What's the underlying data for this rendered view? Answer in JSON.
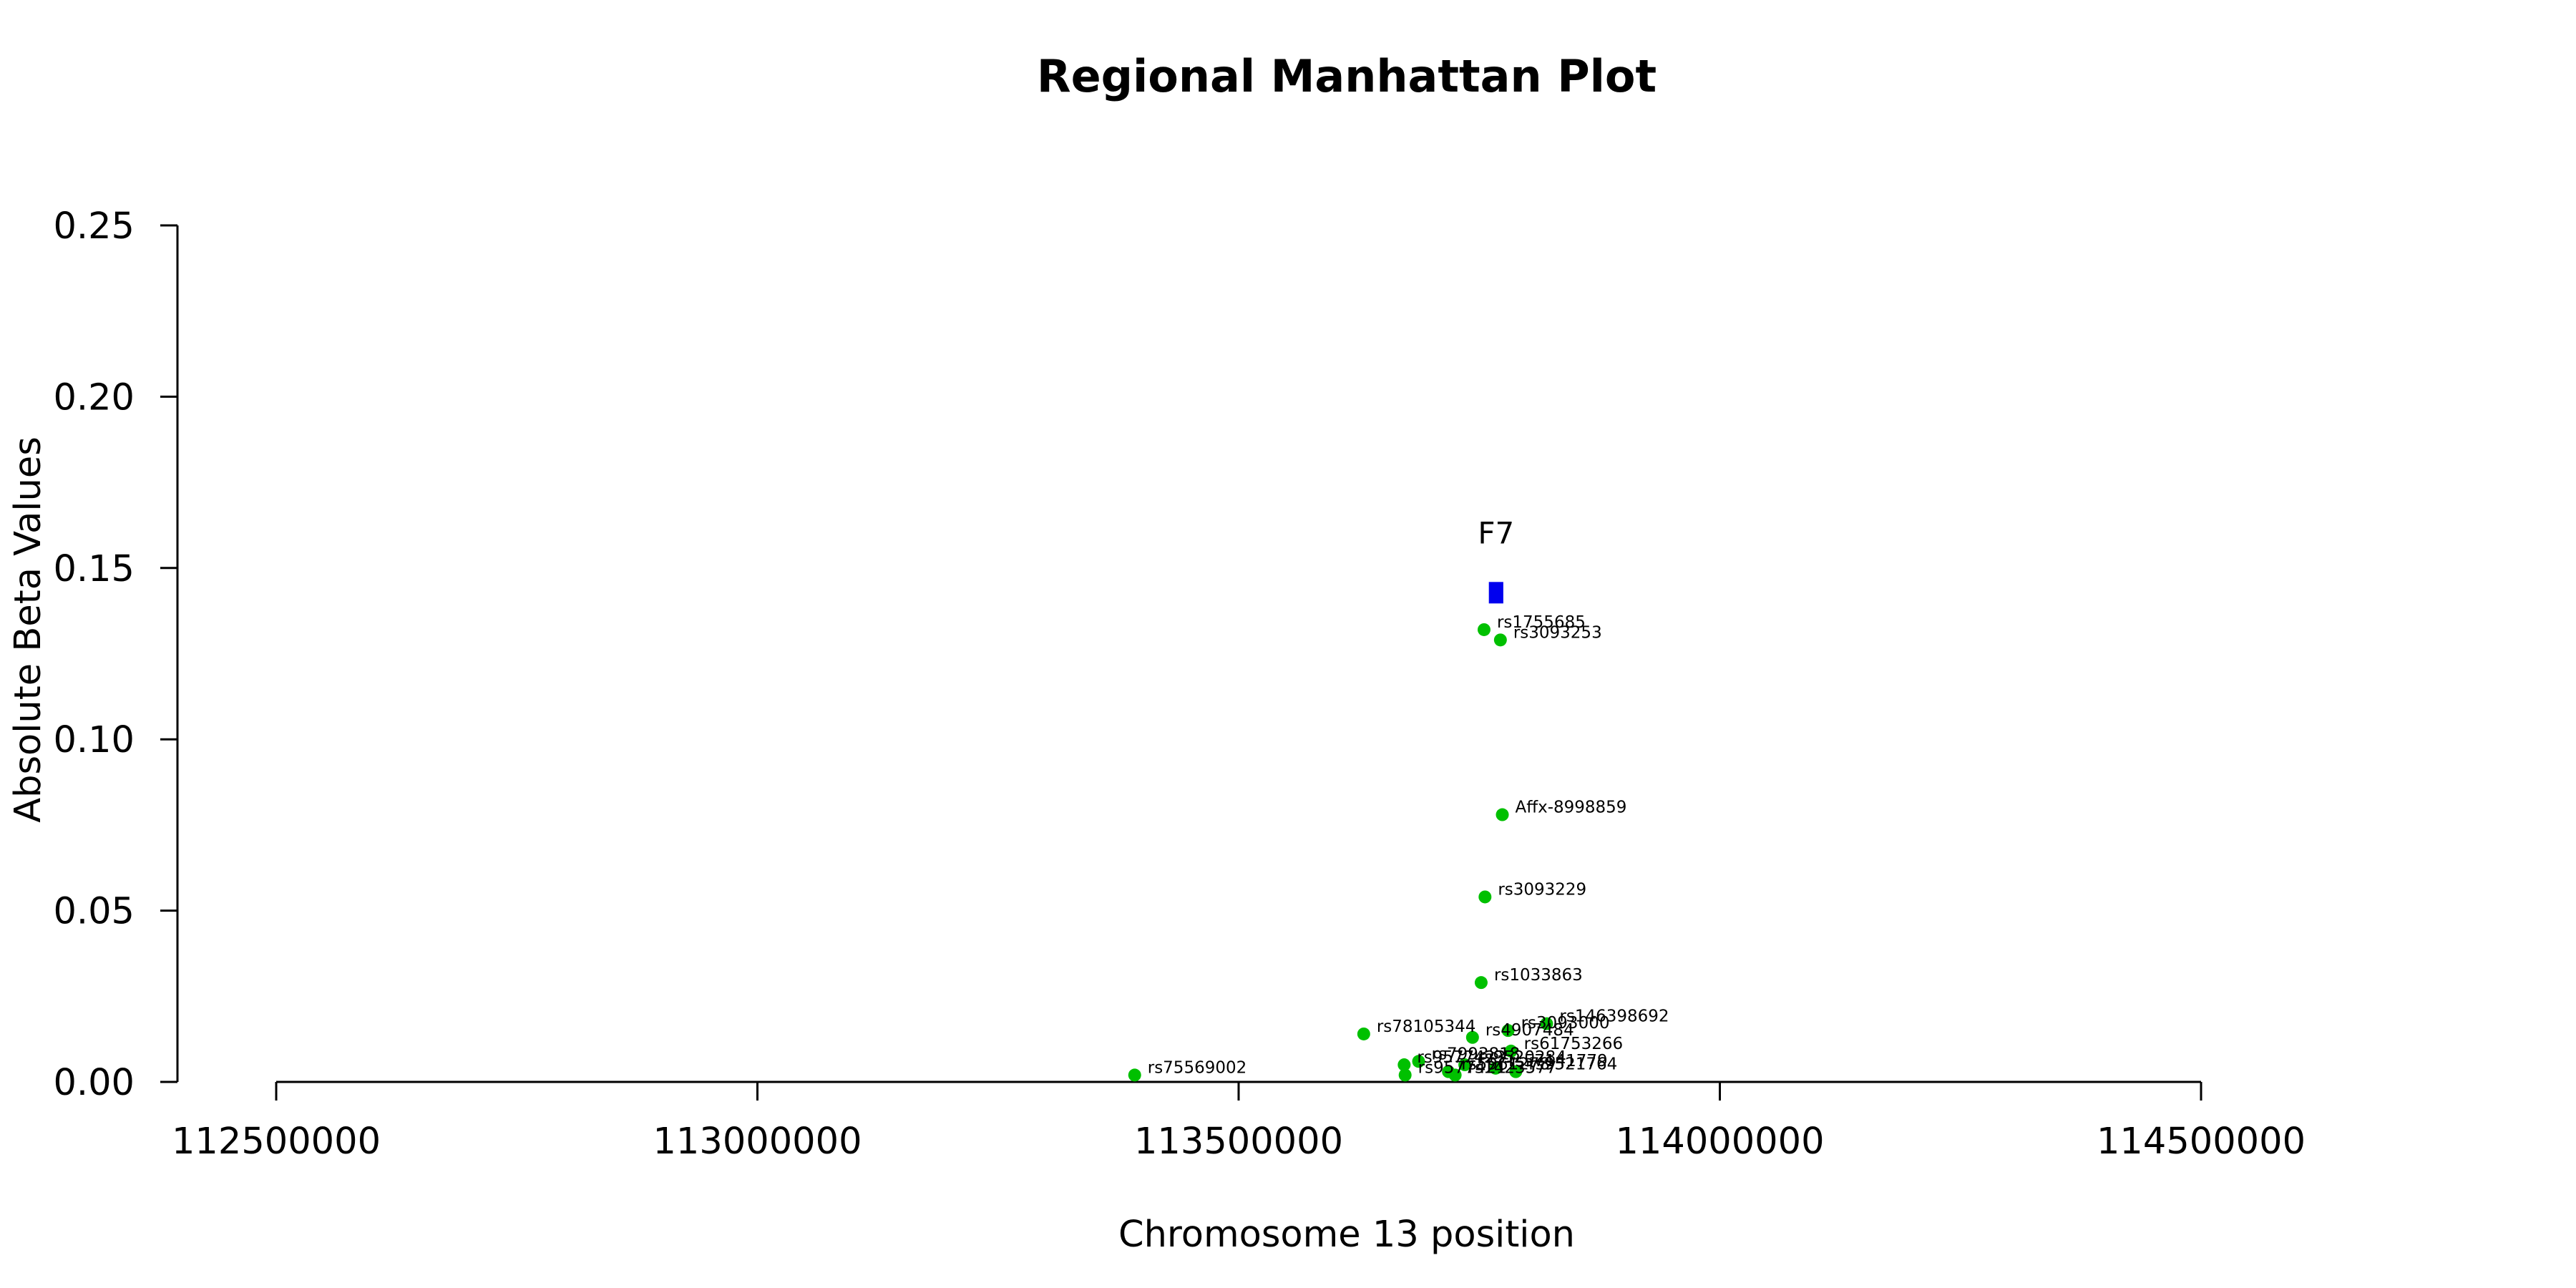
{
  "chart_data": {
    "type": "scatter",
    "title": "Regional Manhattan Plot",
    "xlabel": "Chromosome 13 position",
    "ylabel": "Absolute Beta Values",
    "xlim": [
      112500000,
      114500000
    ],
    "ylim": [
      0,
      0.25
    ],
    "x_ticks": [
      112500000,
      113000000,
      113500000,
      114000000,
      114500000
    ],
    "x_tick_labels": [
      "112500000",
      "113000000",
      "113500000",
      "114000000",
      "114500000"
    ],
    "y_ticks": [
      0.0,
      0.05,
      0.1,
      0.15,
      0.2,
      0.25
    ],
    "y_tick_labels": [
      "0.00",
      "0.05",
      "0.10",
      "0.15",
      "0.20",
      "0.25"
    ],
    "grid": false,
    "colors": {
      "snp": "#00c000",
      "gene": "#0000ee",
      "axis": "#000000"
    },
    "gene": {
      "name": "F7",
      "start": 113760000,
      "end": 113775000,
      "y": 0.143
    },
    "points": [
      {
        "x": 113755000,
        "y": 0.132,
        "label": "rs1755685"
      },
      {
        "x": 113772000,
        "y": 0.129,
        "label": "rs3093253"
      },
      {
        "x": 113774000,
        "y": 0.078,
        "label": "Affx-8998859"
      },
      {
        "x": 113756000,
        "y": 0.054,
        "label": "rs3093229"
      },
      {
        "x": 113752000,
        "y": 0.029,
        "label": "rs1033863"
      },
      {
        "x": 113820000,
        "y": 0.017,
        "label": "rs146398692"
      },
      {
        "x": 113780000,
        "y": 0.015,
        "label": "rs3093000"
      },
      {
        "x": 113743000,
        "y": 0.013,
        "label": "rs4907484"
      },
      {
        "x": 113630000,
        "y": 0.014,
        "label": "rs78105344"
      },
      {
        "x": 113783000,
        "y": 0.009,
        "label": "rs61753266"
      },
      {
        "x": 113687000,
        "y": 0.006,
        "label": "rs7993818"
      },
      {
        "x": 113735000,
        "y": 0.005,
        "label": "rs9520284"
      },
      {
        "x": 113767000,
        "y": 0.004,
        "label": "rs57141779"
      },
      {
        "x": 113672000,
        "y": 0.005,
        "label": "rs9577423"
      },
      {
        "x": 113788000,
        "y": 0.003,
        "label": "rs9521764"
      },
      {
        "x": 113718000,
        "y": 0.003,
        "label": "rs5961278"
      },
      {
        "x": 113673000,
        "y": 0.002,
        "label": "rs9577421"
      },
      {
        "x": 113725000,
        "y": 0.002,
        "label": "rs1423577"
      },
      {
        "x": 113392000,
        "y": 0.002,
        "label": "rs75569002"
      }
    ]
  }
}
